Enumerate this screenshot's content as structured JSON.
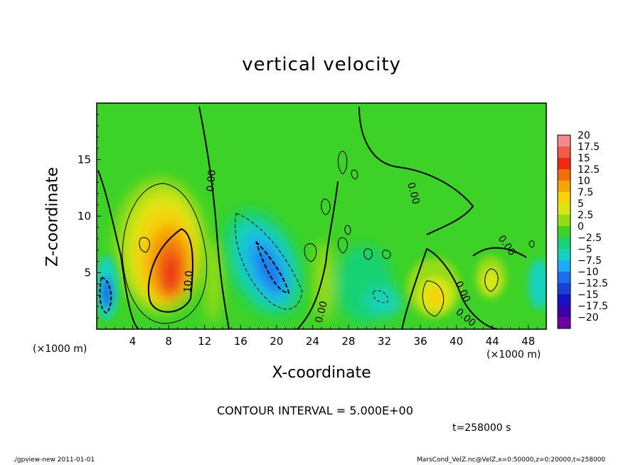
{
  "chart_data": {
    "type": "heatmap",
    "title": "vertical velocity",
    "xlabel": "X-coordinate",
    "ylabel": "Z-coordinate",
    "x_unit_left": "(×1000 m)",
    "x_unit_right": "(×1000 m)",
    "xlim": [
      0,
      50
    ],
    "ylim": [
      0,
      20
    ],
    "x_ticks": [
      4,
      8,
      12,
      16,
      20,
      24,
      28,
      32,
      36,
      40,
      44,
      48
    ],
    "y_ticks": [
      5,
      10,
      15
    ],
    "colorbar": {
      "levels": [
        "20",
        "17.5",
        "15",
        "12.5",
        "10",
        "7.5",
        "5",
        "2.5",
        "0",
        "−2.5",
        "−5",
        "−7.5",
        "−10",
        "−12.5",
        "−15",
        "−17.5",
        "−20"
      ],
      "colors": [
        "#f08c8c",
        "#f05a46",
        "#ee2a14",
        "#f06e0a",
        "#f5a500",
        "#f7d30a",
        "#d8e614",
        "#96dc14",
        "#3cd228",
        "#19d273",
        "#14d2be",
        "#1eaaf5",
        "#1e6eeb",
        "#1941d7",
        "#1414c3",
        "#3c00aa",
        "#6e00a0"
      ]
    },
    "contour_labels": [
      "0.00",
      "10.0",
      "0.00",
      "0.00",
      "0.00",
      "0.00",
      "0.00"
    ],
    "contour_interval": "CONTOUR INTERVAL = 5.000E+00",
    "time_label": "t=258000 s",
    "features": [
      {
        "kind": "updraft",
        "x": 8.5,
        "z": 5.0,
        "peak": 15
      },
      {
        "kind": "downdraft",
        "x": 18.5,
        "z": 6.0,
        "peak": -12.5
      },
      {
        "kind": "downdraft",
        "x": 1.2,
        "z": 3.5,
        "peak": -10
      },
      {
        "kind": "updraft",
        "x": 38.5,
        "z": 3.0,
        "peak": 7.5
      },
      {
        "kind": "updraft",
        "x": 44.5,
        "z": 4.5,
        "peak": 5
      }
    ]
  },
  "footer": {
    "left": "./gpview-new   2011-01-01",
    "right": "MarsCond_VelZ.nc@VelZ,x=0:50000,z=0:20000,t=258000"
  }
}
